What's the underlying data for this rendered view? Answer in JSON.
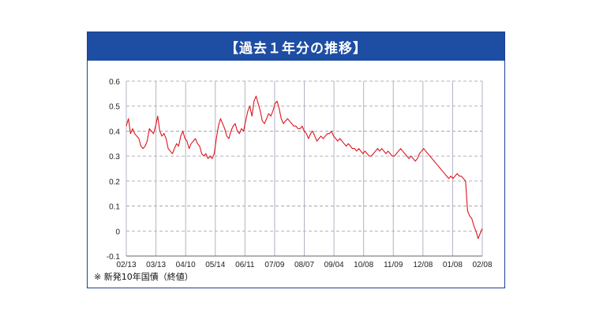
{
  "header": {
    "title": "【過去１年分の推移】"
  },
  "footnote": "※ 新発10年国債（終値）",
  "colors": {
    "line": "#e0141e",
    "title_bg": "#1d4ea3",
    "grid": "#9a9a9a"
  },
  "chart_data": {
    "type": "line",
    "title": "【過去１年分の推移】",
    "xlabel": "",
    "ylabel": "",
    "ylim": [
      -0.1,
      0.6
    ],
    "yticks": [
      0.6,
      0.5,
      0.4,
      0.3,
      0.2,
      0.1,
      0,
      -0.1
    ],
    "ytick_labels": [
      "0.6",
      "0.5",
      "0.4",
      "0.3",
      "0.2",
      "0.1",
      "0",
      "-0.1"
    ],
    "xtick_labels": [
      "02/13",
      "03/13",
      "04/10",
      "05/14",
      "06/11",
      "07/09",
      "08/07",
      "09/04",
      "10/08",
      "11/09",
      "12/08",
      "01/08",
      "02/08"
    ],
    "grid": true,
    "series": [
      {
        "values": [
          0.42,
          0.45,
          0.39,
          0.41,
          0.39,
          0.38,
          0.37,
          0.34,
          0.33,
          0.34,
          0.36,
          0.41,
          0.4,
          0.39,
          0.42,
          0.46,
          0.4,
          0.38,
          0.39,
          0.37,
          0.33,
          0.32,
          0.31,
          0.33,
          0.35,
          0.34,
          0.38,
          0.4,
          0.37,
          0.36,
          0.33,
          0.35,
          0.36,
          0.37,
          0.35,
          0.34,
          0.31,
          0.3,
          0.31,
          0.29,
          0.3,
          0.29,
          0.31,
          0.37,
          0.42,
          0.45,
          0.43,
          0.41,
          0.38,
          0.37,
          0.4,
          0.42,
          0.43,
          0.4,
          0.39,
          0.41,
          0.4,
          0.44,
          0.48,
          0.5,
          0.46,
          0.52,
          0.54,
          0.51,
          0.48,
          0.44,
          0.43,
          0.45,
          0.47,
          0.46,
          0.48,
          0.51,
          0.52,
          0.49,
          0.45,
          0.43,
          0.44,
          0.45,
          0.44,
          0.43,
          0.42,
          0.42,
          0.41,
          0.41,
          0.42,
          0.4,
          0.39,
          0.37,
          0.39,
          0.4,
          0.38,
          0.36,
          0.37,
          0.38,
          0.37,
          0.38,
          0.39,
          0.39,
          0.4,
          0.38,
          0.37,
          0.36,
          0.37,
          0.36,
          0.35,
          0.34,
          0.35,
          0.34,
          0.33,
          0.33,
          0.32,
          0.33,
          0.32,
          0.31,
          0.32,
          0.31,
          0.3,
          0.3,
          0.31,
          0.32,
          0.33,
          0.32,
          0.33,
          0.32,
          0.31,
          0.32,
          0.31,
          0.3,
          0.3,
          0.31,
          0.32,
          0.33,
          0.32,
          0.31,
          0.3,
          0.29,
          0.3,
          0.29,
          0.28,
          0.29,
          0.31,
          0.32,
          0.33,
          0.32,
          0.31,
          0.3,
          0.29,
          0.28,
          0.27,
          0.26,
          0.25,
          0.24,
          0.23,
          0.22,
          0.21,
          0.22,
          0.21,
          0.22,
          0.23,
          0.22,
          0.22,
          0.21,
          0.2,
          0.08,
          0.06,
          0.05,
          0.02,
          0.0,
          -0.03,
          -0.01,
          0.01
        ]
      }
    ]
  }
}
